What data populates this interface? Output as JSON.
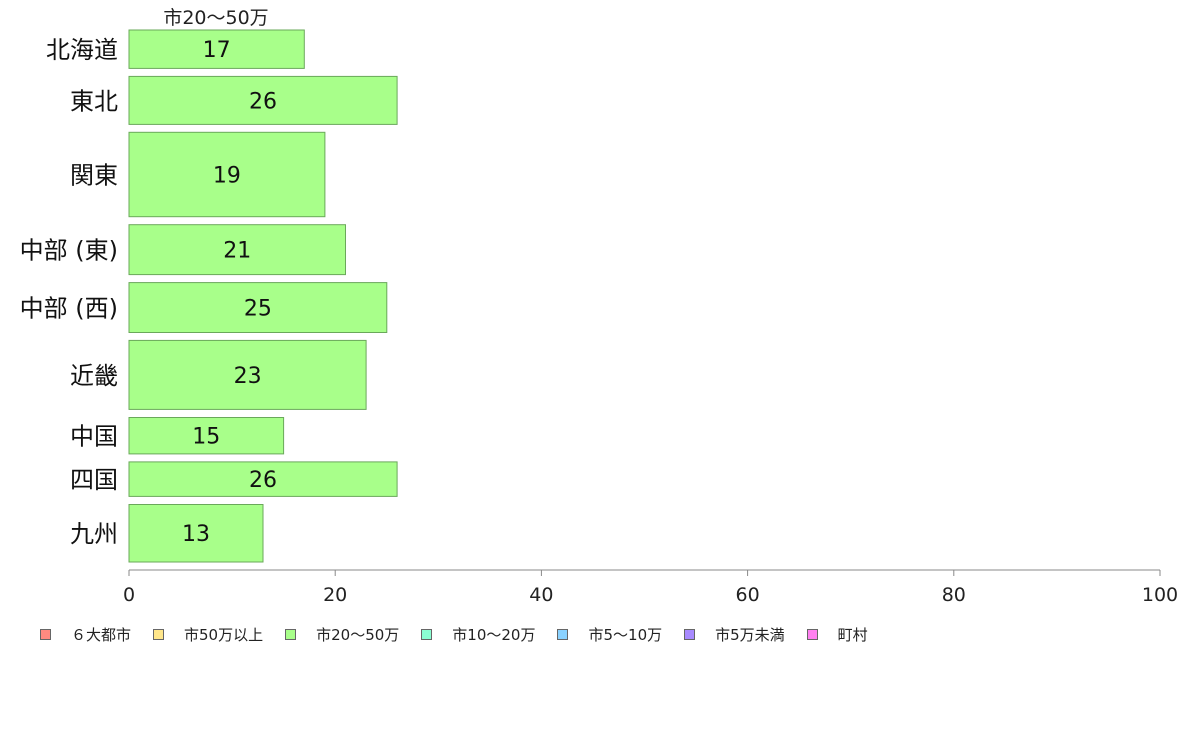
{
  "chart_data": {
    "type": "bar",
    "orientation": "horizontal",
    "series_title": "市20〜50万",
    "categories": [
      "北海道",
      "東北",
      "関東",
      "中部 (東)",
      "中部 (西)",
      "近畿",
      "中国",
      "四国",
      "九州"
    ],
    "series": [
      {
        "name": "市20〜50万",
        "color": "#a8ff8a",
        "values": [
          17,
          26,
          19,
          21,
          25,
          23,
          15,
          26,
          13
        ]
      }
    ],
    "bar_weights": [
      1.0,
      1.25,
      2.2,
      1.3,
      1.3,
      1.8,
      0.95,
      0.9,
      1.5
    ],
    "xlim": [
      0,
      100
    ],
    "xticks": [
      "0",
      "20",
      "40",
      "60",
      "80",
      "100"
    ],
    "grid": false
  },
  "legend": {
    "placement": "bottom",
    "items": [
      {
        "label": "６大都市",
        "color": "#ff8a80"
      },
      {
        "label": "市50万以上",
        "color": "#ffe68a"
      },
      {
        "label": "市20〜50万",
        "color": "#a8ff8a"
      },
      {
        "label": "市10〜20万",
        "color": "#8affd2"
      },
      {
        "label": "市5〜10万",
        "color": "#8ad2ff"
      },
      {
        "label": "市5万未満",
        "color": "#a88aff"
      },
      {
        "label": "町村",
        "color": "#ff80f0"
      }
    ]
  }
}
